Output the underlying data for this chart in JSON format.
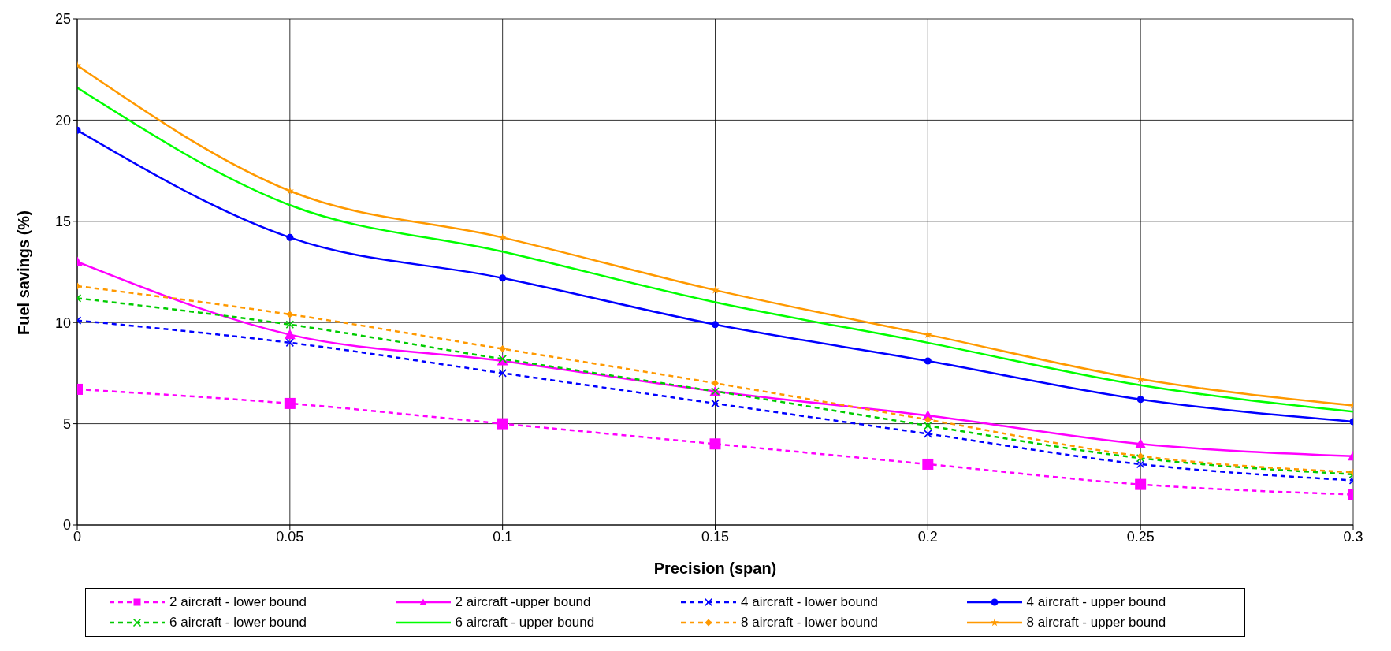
{
  "chart_data": {
    "type": "line",
    "xlabel": "Precision (span)",
    "ylabel": "Fuel savings (%)",
    "x": [
      0,
      0.05,
      0.1,
      0.15,
      0.2,
      0.25,
      0.3
    ],
    "xlim": [
      0,
      0.3
    ],
    "xticks": [
      0,
      0.05,
      0.1,
      0.15,
      0.2,
      0.25,
      0.3
    ],
    "ylim": [
      0,
      25
    ],
    "yticks": [
      0,
      5,
      10,
      15,
      20,
      25
    ],
    "grid": true,
    "legend": "bottom",
    "series": [
      {
        "name": "2 aircraft - lower bound",
        "color": "#ff00ff",
        "marker": "square",
        "line_style": "dashed",
        "values": [
          6.7,
          6.0,
          5.0,
          4.0,
          3.0,
          2.0,
          1.5
        ]
      },
      {
        "name": "2 aircraft -upper bound",
        "color": "#ff00ff",
        "marker": "triangle",
        "line_style": "solid",
        "values": [
          13.0,
          9.4,
          8.1,
          6.6,
          5.4,
          4.0,
          3.4
        ]
      },
      {
        "name": "4 aircraft - lower bound",
        "color": "#0000ff",
        "marker": "cross",
        "line_style": "dashed",
        "values": [
          10.1,
          9.0,
          7.5,
          6.0,
          4.5,
          3.0,
          2.2
        ]
      },
      {
        "name": "4 aircraft - upper bound",
        "color": "#0000ff",
        "marker": "circle",
        "line_style": "solid",
        "values": [
          19.5,
          14.2,
          12.2,
          9.9,
          8.1,
          6.2,
          5.1
        ]
      },
      {
        "name": "6 aircraft - lower bound",
        "color": "#00cc00",
        "marker": "cross",
        "line_style": "dashed",
        "values": [
          11.2,
          9.9,
          8.2,
          6.6,
          4.9,
          3.3,
          2.5
        ]
      },
      {
        "name": "6 aircraft - upper bound",
        "color": "#00ff00",
        "marker": "none",
        "line_style": "solid",
        "values": [
          21.6,
          15.8,
          13.5,
          11.0,
          9.0,
          6.9,
          5.6
        ]
      },
      {
        "name": "8 aircraft - lower bound",
        "color": "#ff9900",
        "marker": "diamond",
        "line_style": "dashed",
        "values": [
          11.8,
          10.4,
          8.7,
          7.0,
          5.2,
          3.4,
          2.6
        ]
      },
      {
        "name": "8 aircraft - upper bound",
        "color": "#ff9900",
        "marker": "star",
        "line_style": "solid",
        "values": [
          22.7,
          16.5,
          14.2,
          11.6,
          9.4,
          7.2,
          5.9
        ]
      }
    ]
  }
}
